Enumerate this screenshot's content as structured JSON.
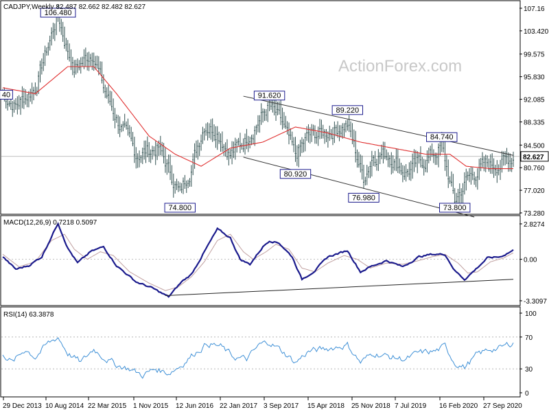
{
  "watermark": "ActionForex.com",
  "colors": {
    "price": "#2f4f4f",
    "ma": "#e03030",
    "macd": "#1a1a8c",
    "signal": "#c0a0a0",
    "rsi": "#3d8fd6",
    "channel": "#333333",
    "grid": "#aaaaaa",
    "annot_border": "#1a1a8c"
  },
  "chart_data": [
    {
      "type": "candlestick",
      "title": "CADJPY,Weekly  82.487 82.662 82.482 82.627",
      "last_price_label": "82.627",
      "y_ticks": [
        "107.16",
        "103.420",
        "99.575",
        "95.830",
        "92.085",
        "88.335",
        "84.500",
        "80.760",
        "77.020",
        "73.280"
      ],
      "y_tick_values": [
        107.16,
        103.42,
        99.575,
        95.83,
        92.085,
        88.335,
        84.5,
        80.76,
        77.02,
        73.28
      ],
      "ylim": [
        73.28,
        107.16
      ],
      "last_price": 82.627,
      "x_labels": [
        "29 Dec 2013",
        "10 Aug 2014",
        "22 Mar 2015",
        "1 Nov 2015",
        "12 Jun 2016",
        "22 Jan 2017",
        "3 Sep 2017",
        "15 Apr 2018",
        "25 Nov 2018",
        "7 Jul 2019",
        "16 Feb 2020",
        "27 Sep 2020"
      ],
      "annotations": [
        {
          "label": "106.480",
          "index": 34,
          "value": 106.48
        },
        {
          "label": "74.800",
          "index": 109,
          "value": 74.8
        },
        {
          "label": "91.620",
          "index": 164,
          "value": 91.62
        },
        {
          "label": "80.920",
          "index": 180,
          "value": 80.92
        },
        {
          "label": "89.220",
          "index": 212,
          "value": 89.22
        },
        {
          "label": "76.980",
          "index": 222,
          "value": 76.98
        },
        {
          "label": "84.740",
          "index": 270,
          "value": 84.74
        },
        {
          "label": "73.800",
          "index": 278,
          "value": 73.8
        },
        {
          "label": "40",
          "index": 0,
          "value": 92.9
        }
      ],
      "series_anchors": {
        "close_anchors": [
          [
            0,
            93
          ],
          [
            8,
            91
          ],
          [
            20,
            94
          ],
          [
            34,
            106.2
          ],
          [
            38,
            102
          ],
          [
            44,
            97
          ],
          [
            56,
            100
          ],
          [
            62,
            94
          ],
          [
            70,
            89
          ],
          [
            82,
            83
          ],
          [
            96,
            84
          ],
          [
            109,
            76.5
          ],
          [
            116,
            81
          ],
          [
            124,
            88
          ],
          [
            132,
            87
          ],
          [
            140,
            83
          ],
          [
            148,
            85
          ],
          [
            156,
            88
          ],
          [
            164,
            91
          ],
          [
            172,
            88
          ],
          [
            180,
            82.5
          ],
          [
            188,
            86
          ],
          [
            198,
            86.5
          ],
          [
            212,
            88
          ],
          [
            222,
            79
          ],
          [
            228,
            83
          ],
          [
            238,
            83
          ],
          [
            248,
            80
          ],
          [
            260,
            82
          ],
          [
            270,
            84.2
          ],
          [
            278,
            75
          ],
          [
            286,
            79
          ],
          [
            296,
            81
          ],
          [
            306,
            81.5
          ],
          [
            314,
            82.6
          ]
        ],
        "ma_anchors": [
          [
            0,
            94
          ],
          [
            20,
            93
          ],
          [
            40,
            97.5
          ],
          [
            56,
            97.5
          ],
          [
            70,
            93
          ],
          [
            90,
            86
          ],
          [
            106,
            83
          ],
          [
            122,
            81
          ],
          [
            140,
            84
          ],
          [
            160,
            85
          ],
          [
            180,
            87.5
          ],
          [
            200,
            86.5
          ],
          [
            220,
            85
          ],
          [
            240,
            84
          ],
          [
            260,
            83
          ],
          [
            275,
            83
          ],
          [
            285,
            81
          ],
          [
            300,
            80.6
          ],
          [
            314,
            80.6
          ]
        ],
        "channel_upper": [
          [
            148,
            92.6
          ],
          [
            314,
            82.8
          ]
        ],
        "channel_lower": [
          [
            148,
            82.5
          ],
          [
            290,
            72.6
          ]
        ]
      },
      "bar_count": 315
    },
    {
      "type": "line",
      "title": "MACD(12,26,9)  0.7218  0.5097",
      "y_ticks": [
        "2.8274",
        "0.00",
        "-3.3097"
      ],
      "y_tick_values": [
        2.8274,
        0.0,
        -3.3097
      ],
      "ylim": [
        -3.3097,
        2.8274
      ],
      "series": [
        {
          "name": "MACD",
          "anchors": [
            [
              0,
              0.2
            ],
            [
              8,
              -0.8
            ],
            [
              16,
              -0.5
            ],
            [
              24,
              0.2
            ],
            [
              34,
              2.9
            ],
            [
              40,
              0.9
            ],
            [
              46,
              -0.3
            ],
            [
              54,
              0.6
            ],
            [
              62,
              1.0
            ],
            [
              70,
              -0.5
            ],
            [
              82,
              -1.8
            ],
            [
              92,
              -2.3
            ],
            [
              102,
              -3.0
            ],
            [
              110,
              -1.8
            ],
            [
              116,
              -1.2
            ],
            [
              124,
              0.6
            ],
            [
              132,
              2.4
            ],
            [
              140,
              1.7
            ],
            [
              146,
              0.0
            ],
            [
              152,
              -0.4
            ],
            [
              160,
              1.0
            ],
            [
              164,
              1.5
            ],
            [
              170,
              1.3
            ],
            [
              178,
              0.2
            ],
            [
              184,
              -1.6
            ],
            [
              192,
              -0.9
            ],
            [
              200,
              0.2
            ],
            [
              212,
              0.7
            ],
            [
              220,
              -1.0
            ],
            [
              226,
              -0.6
            ],
            [
              236,
              -0.1
            ],
            [
              246,
              -0.6
            ],
            [
              256,
              0.2
            ],
            [
              264,
              0.4
            ],
            [
              272,
              0.4
            ],
            [
              278,
              -0.9
            ],
            [
              284,
              -1.6
            ],
            [
              290,
              -0.9
            ],
            [
              298,
              0.1
            ],
            [
              306,
              0.2
            ],
            [
              314,
              0.72
            ]
          ]
        },
        {
          "name": "Signal",
          "anchors": [
            [
              0,
              0.4
            ],
            [
              10,
              -0.6
            ],
            [
              20,
              -0.2
            ],
            [
              30,
              1.5
            ],
            [
              38,
              2.0
            ],
            [
              44,
              0.8
            ],
            [
              52,
              0.0
            ],
            [
              60,
              0.6
            ],
            [
              68,
              0.3
            ],
            [
              78,
              -1.0
            ],
            [
              90,
              -1.9
            ],
            [
              100,
              -2.5
            ],
            [
              108,
              -2.2
            ],
            [
              116,
              -1.4
            ],
            [
              124,
              -0.2
            ],
            [
              132,
              1.5
            ],
            [
              140,
              2.0
            ],
            [
              148,
              0.6
            ],
            [
              154,
              0.0
            ],
            [
              162,
              0.6
            ],
            [
              168,
              1.2
            ],
            [
              176,
              0.8
            ],
            [
              184,
              -0.7
            ],
            [
              192,
              -1.0
            ],
            [
              200,
              -0.3
            ],
            [
              210,
              0.3
            ],
            [
              218,
              0.0
            ],
            [
              226,
              -0.7
            ],
            [
              236,
              -0.3
            ],
            [
              246,
              -0.4
            ],
            [
              256,
              -0.1
            ],
            [
              264,
              0.2
            ],
            [
              272,
              0.4
            ],
            [
              280,
              -0.3
            ],
            [
              286,
              -1.1
            ],
            [
              292,
              -1.0
            ],
            [
              300,
              -0.2
            ],
            [
              308,
              0.1
            ],
            [
              314,
              0.51
            ]
          ]
        }
      ],
      "trendline": [
        [
          100,
          -2.9
        ],
        [
          314,
          -1.6
        ]
      ]
    },
    {
      "type": "line",
      "title": "RSI(14)  63.3878",
      "y_ticks": [
        "100",
        "70",
        "30",
        "0"
      ],
      "y_tick_values": [
        100,
        70,
        30,
        0
      ],
      "ylim": [
        0,
        100
      ],
      "levels": [
        70,
        30
      ],
      "series": [
        {
          "name": "RSI",
          "anchors": [
            [
              0,
              50
            ],
            [
              6,
              38
            ],
            [
              14,
              55
            ],
            [
              20,
              45
            ],
            [
              28,
              62
            ],
            [
              34,
              70
            ],
            [
              40,
              50
            ],
            [
              48,
              38
            ],
            [
              56,
              55
            ],
            [
              62,
              45
            ],
            [
              70,
              35
            ],
            [
              78,
              30
            ],
            [
              86,
              22
            ],
            [
              94,
              30
            ],
            [
              102,
              25
            ],
            [
              110,
              35
            ],
            [
              118,
              50
            ],
            [
              126,
              62
            ],
            [
              134,
              58
            ],
            [
              142,
              45
            ],
            [
              150,
              42
            ],
            [
              158,
              60
            ],
            [
              164,
              64
            ],
            [
              172,
              52
            ],
            [
              180,
              38
            ],
            [
              188,
              52
            ],
            [
              198,
              55
            ],
            [
              212,
              60
            ],
            [
              220,
              38
            ],
            [
              228,
              50
            ],
            [
              238,
              45
            ],
            [
              248,
              42
            ],
            [
              256,
              50
            ],
            [
              266,
              52
            ],
            [
              272,
              58
            ],
            [
              278,
              38
            ],
            [
              284,
              32
            ],
            [
              292,
              48
            ],
            [
              300,
              55
            ],
            [
              306,
              56
            ],
            [
              314,
              63.39
            ]
          ]
        }
      ]
    }
  ]
}
